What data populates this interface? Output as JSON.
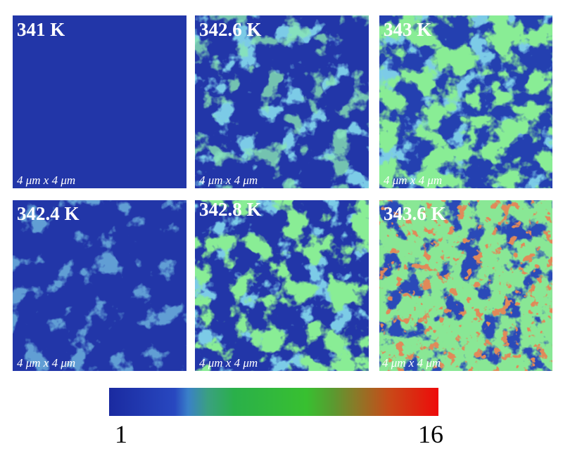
{
  "panels": [
    {
      "label": "341 K",
      "scale": "4 μm x 4 μm"
    },
    {
      "label": "342.6 K",
      "scale": "4 μm x 4 μm"
    },
    {
      "label": "343 K",
      "scale": "4 μm x 4 μm"
    },
    {
      "label": "342.4 K",
      "scale": "4 μm x 4 μm"
    },
    {
      "label": "342.8 K",
      "scale": "4 μm x 4 μm"
    },
    {
      "label": "343.6 K",
      "scale": "4 μm x 4 μm"
    }
  ],
  "colorbar": {
    "min_label": "1",
    "max_label": "16"
  }
}
